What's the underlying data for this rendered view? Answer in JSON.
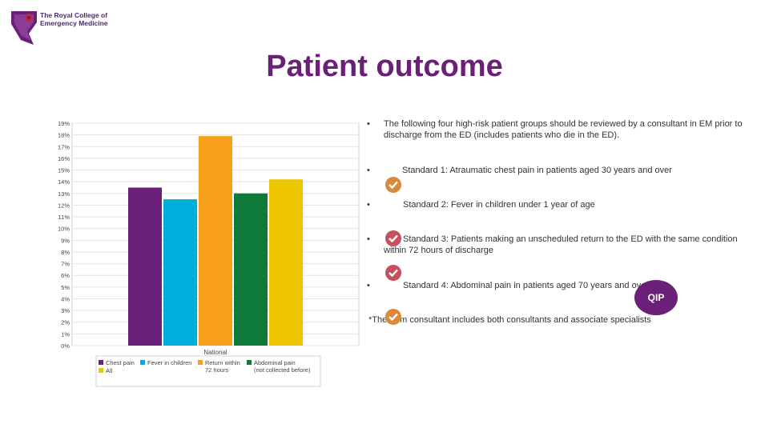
{
  "logo": {
    "line1": "The Royal College of",
    "line2": "Emergency Medicine"
  },
  "title": "Patient outcome",
  "bullets": [
    {
      "marker": "•",
      "text": "The following four high-risk patient groups should be reviewed by a consultant in EM prior to discharge from the ED (includes patients who die in the ED)."
    },
    {
      "marker": "•",
      "text": "Standard 1: Atraumatic chest pain in patients aged 30 years and over"
    },
    {
      "marker": "•",
      "text": "Standard 2: Fever in children under 1 year of age"
    },
    {
      "marker": "•",
      "text": "Standard 3: Patients making an unscheduled return to the ED with the same condition within 72 hours of discharge"
    },
    {
      "marker": "•",
      "text": "Standard 4: Abdominal pain in patients aged 70 years and over"
    }
  ],
  "footnote": "*The term consultant includes both consultants and associate specialists",
  "qip_label": "QIP",
  "colors": {
    "title": "#6b2077",
    "check_orange": "#d98b3a",
    "check_red": "#c6505e",
    "qip": "#6a1f78"
  },
  "chart_data": {
    "type": "bar",
    "categories": [
      "National"
    ],
    "series": [
      {
        "name": "Chest pain",
        "values": [
          13.5
        ],
        "color": "#6a1f78"
      },
      {
        "name": "Fever in children",
        "values": [
          12.5
        ],
        "color": "#00aedb"
      },
      {
        "name": "Return within 72 hours",
        "values": [
          17.9
        ],
        "color": "#f7a11a"
      },
      {
        "name": "Abdominal pain (not collected before)",
        "values": [
          13.0
        ],
        "color": "#0e7a3a"
      },
      {
        "name": "All",
        "values": [
          14.2
        ],
        "color": "#edc500"
      }
    ],
    "ylim": [
      0,
      19
    ],
    "yticks": [
      "0%",
      "1%",
      "2%",
      "3%",
      "4%",
      "5%",
      "6%",
      "7%",
      "8%",
      "9%",
      "10%",
      "11%",
      "12%",
      "13%",
      "14%",
      "15%",
      "16%",
      "17%",
      "18%",
      "19%"
    ],
    "grid": true,
    "legend_position": "bottom"
  }
}
